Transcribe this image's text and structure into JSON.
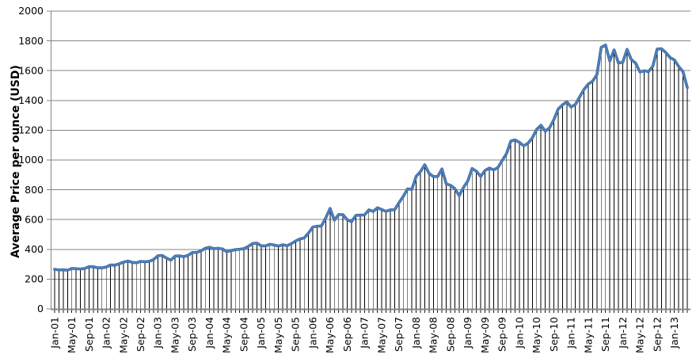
{
  "chart_data": {
    "type": "line",
    "title": "",
    "xlabel": "",
    "ylabel": "Average Price per ounce (USD)",
    "ylim": [
      0,
      2000
    ],
    "y_tick_step": 200,
    "x_label_every": 4,
    "x_tick_every": 1,
    "grid": "horizontal-major",
    "drop_lines": true,
    "legend": "none",
    "colors": {
      "line": "#4F81BD",
      "line_edge": "#38639C",
      "gridline": "#848484",
      "axis": "#848484",
      "drop_line": "#000000",
      "category_tick": "#1A1A1A",
      "text": "#000000",
      "background": "#FFFFFF"
    },
    "x": [
      "Jan-01",
      "Feb-01",
      "Mar-01",
      "Apr-01",
      "May-01",
      "Jun-01",
      "Jul-01",
      "Aug-01",
      "Sep-01",
      "Oct-01",
      "Nov-01",
      "Dec-01",
      "Jan-02",
      "Feb-02",
      "Mar-02",
      "Apr-02",
      "May-02",
      "Jun-02",
      "Jul-02",
      "Aug-02",
      "Sep-02",
      "Oct-02",
      "Nov-02",
      "Dec-02",
      "Jan-03",
      "Feb-03",
      "Mar-03",
      "Apr-03",
      "May-03",
      "Jun-03",
      "Jul-03",
      "Aug-03",
      "Sep-03",
      "Oct-03",
      "Nov-03",
      "Dec-03",
      "Jan-04",
      "Feb-04",
      "Mar-04",
      "Apr-04",
      "May-04",
      "Jun-04",
      "Jul-04",
      "Aug-04",
      "Sep-04",
      "Oct-04",
      "Nov-04",
      "Dec-04",
      "Jan-05",
      "Feb-05",
      "Mar-05",
      "Apr-05",
      "May-05",
      "Jun-05",
      "Jul-05",
      "Aug-05",
      "Sep-05",
      "Oct-05",
      "Nov-05",
      "Dec-05",
      "Jan-06",
      "Feb-06",
      "Mar-06",
      "Apr-06",
      "May-06",
      "Jun-06",
      "Jul-06",
      "Aug-06",
      "Sep-06",
      "Oct-06",
      "Nov-06",
      "Dec-06",
      "Jan-07",
      "Feb-07",
      "Mar-07",
      "Apr-07",
      "May-07",
      "Jun-07",
      "Jul-07",
      "Aug-07",
      "Sep-07",
      "Oct-07",
      "Nov-07",
      "Dec-07",
      "Jan-08",
      "Feb-08",
      "Mar-08",
      "Apr-08",
      "May-08",
      "Jun-08",
      "Jul-08",
      "Aug-08",
      "Sep-08",
      "Oct-08",
      "Nov-08",
      "Dec-08",
      "Jan-09",
      "Feb-09",
      "Mar-09",
      "Apr-09",
      "May-09",
      "Jun-09",
      "Jul-09",
      "Aug-09",
      "Sep-09",
      "Oct-09",
      "Nov-09",
      "Dec-09",
      "Jan-10",
      "Feb-10",
      "Mar-10",
      "Apr-10",
      "May-10",
      "Jun-10",
      "Jul-10",
      "Aug-10",
      "Sep-10",
      "Oct-10",
      "Nov-10",
      "Dec-10",
      "Jan-11",
      "Feb-11",
      "Mar-11",
      "Apr-11",
      "May-11",
      "Jun-11",
      "Jul-11",
      "Aug-11",
      "Sep-11",
      "Oct-11",
      "Nov-11",
      "Dec-11",
      "Jan-12",
      "Feb-12",
      "Mar-12",
      "Apr-12",
      "May-12",
      "Jun-12",
      "Jul-12",
      "Aug-12",
      "Sep-12",
      "Oct-12",
      "Nov-12",
      "Dec-12",
      "Jan-13",
      "Feb-13",
      "Mar-13",
      "Apr-13"
    ],
    "values": [
      266,
      262,
      263,
      260,
      272,
      270,
      268,
      272,
      284,
      283,
      276,
      276,
      281,
      295,
      294,
      303,
      314,
      321,
      313,
      310,
      319,
      317,
      319,
      332,
      357,
      359,
      341,
      328,
      355,
      356,
      351,
      360,
      379,
      379,
      390,
      407,
      414,
      405,
      407,
      403,
      384,
      392,
      398,
      401,
      405,
      420,
      439,
      442,
      424,
      423,
      434,
      429,
      422,
      431,
      424,
      438,
      456,
      470,
      477,
      510,
      550,
      555,
      557,
      611,
      675,
      596,
      634,
      633,
      598,
      586,
      628,
      630,
      631,
      665,
      655,
      679,
      667,
      655,
      665,
      665,
      713,
      755,
      806,
      803,
      890,
      922,
      968,
      910,
      889,
      889,
      940,
      839,
      830,
      807,
      761,
      816,
      859,
      943,
      924,
      890,
      929,
      946,
      934,
      949,
      997,
      1043,
      1127,
      1135,
      1118,
      1095,
      1113,
      1149,
      1205,
      1233,
      1193,
      1216,
      1271,
      1342,
      1370,
      1391,
      1356,
      1373,
      1424,
      1474,
      1510,
      1529,
      1573,
      1756,
      1772,
      1665,
      1739,
      1652,
      1656,
      1743,
      1674,
      1650,
      1591,
      1599,
      1594,
      1630,
      1745,
      1747,
      1722,
      1688,
      1672,
      1628,
      1593,
      1486
    ]
  }
}
